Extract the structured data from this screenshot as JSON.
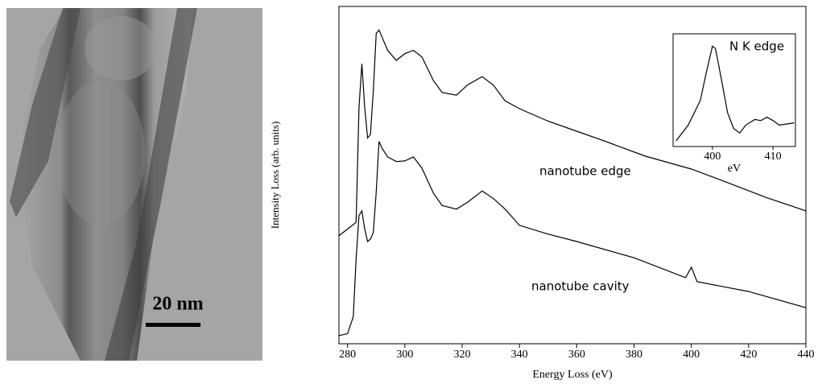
{
  "image": {
    "scale_label": "20 nm"
  },
  "chart_data": [
    {
      "type": "line",
      "xlabel": "Energy Loss (eV)",
      "ylabel": "Intensity Loss (arb. units)",
      "xlim": [
        277,
        440
      ],
      "ylim": [
        0,
        100
      ],
      "xticks": [
        280,
        300,
        320,
        340,
        360,
        380,
        400,
        420,
        440
      ],
      "series": [
        {
          "name": "nanotube edge",
          "color": "#000000",
          "x": [
            277,
            280,
            283,
            284,
            285,
            286,
            287,
            288,
            289,
            290,
            291,
            292,
            294,
            297,
            300,
            303,
            306,
            310,
            313,
            318,
            322,
            327,
            331,
            335,
            340,
            350,
            360,
            370,
            384,
            400,
            412,
            426,
            440
          ],
          "values": [
            32,
            34,
            36,
            70,
            83,
            70,
            61,
            62,
            75,
            92,
            93,
            91,
            87,
            84,
            86,
            87,
            85,
            78,
            74.5,
            73.7,
            76.8,
            79.2,
            76.6,
            72,
            69.7,
            66,
            63,
            60,
            55.6,
            51.8,
            48,
            43.4,
            39.4
          ]
        },
        {
          "name": "nanotube cavity",
          "color": "#000000",
          "x": [
            277,
            280,
            282,
            283,
            284,
            285,
            286,
            287,
            288,
            289,
            290,
            291,
            292,
            294,
            297,
            300,
            303,
            306,
            310,
            313,
            318,
            322,
            327,
            331,
            335,
            340,
            350,
            360,
            380,
            398,
            400,
            402,
            420,
            440
          ],
          "values": [
            2.4,
            3,
            8,
            25,
            38,
            39.4,
            34,
            30.3,
            31,
            33,
            45,
            60,
            58,
            55.4,
            54,
            54.2,
            55.4,
            52,
            44.6,
            41,
            39.9,
            42,
            45.3,
            43,
            39.9,
            35.1,
            32.5,
            30.3,
            25.5,
            19.6,
            22.7,
            18.4,
            15.5,
            10.7
          ]
        }
      ]
    },
    {
      "type": "line",
      "title": "N K edge",
      "xlabel": "eV",
      "xlim": [
        393.5,
        413.7
      ],
      "ylim": [
        0,
        100
      ],
      "xticks": [
        400,
        410
      ],
      "series": [
        {
          "color": "#000000",
          "x": [
            394,
            396,
            398,
            399,
            400,
            400.5,
            401.5,
            402.5,
            403.5,
            404.5,
            405.5,
            407,
            408,
            409,
            410,
            411,
            413.5
          ],
          "values": [
            5,
            19,
            41,
            66,
            89,
            87,
            59,
            30,
            16,
            12,
            19,
            24,
            23,
            26,
            23,
            19,
            21
          ]
        }
      ]
    }
  ]
}
